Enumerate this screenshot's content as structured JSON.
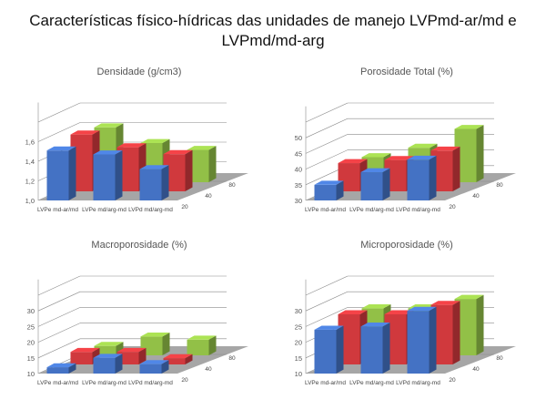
{
  "figure": {
    "title_line1": "Características físico-hídricas das unidades de manejo LVPmd-ar/md  e",
    "title_line2": "LVPmd/md-arg"
  },
  "colors": {
    "blue": "#4472C4",
    "red": "#D0393D",
    "green": "#92C047",
    "floor": "#A6A6A6"
  },
  "chart_data": [
    {
      "type": "bar",
      "title": "Densidade (g/cm3)",
      "categories": [
        "LVPe md-ar/md",
        "LVPe md/arg-md",
        "LVPd md/arg-md"
      ],
      "depth_labels": [
        "20",
        "40",
        "80"
      ],
      "yticks": [
        "1,0",
        "1,2",
        "1,4",
        "1,6"
      ],
      "ylim": [
        1.0,
        1.8
      ],
      "series": [
        {
          "name": "20",
          "color": "#4472C4",
          "values": [
            1.51,
            1.47,
            1.32
          ]
        },
        {
          "name": "40",
          "color": "#D0393D",
          "values": [
            1.58,
            1.45,
            1.38
          ]
        },
        {
          "name": "80",
          "color": "#92C047",
          "values": [
            1.56,
            1.4,
            1.33
          ]
        }
      ]
    },
    {
      "type": "bar",
      "title": "Porosidade Total (%)",
      "categories": [
        "LVPe md-ar/md",
        "LVPe md/arg-md",
        "LVPd md/arg-md"
      ],
      "depth_labels": [
        "20",
        "40",
        "80"
      ],
      "yticks": [
        "30",
        "35",
        "40",
        "45",
        "50"
      ],
      "ylim": [
        30,
        55
      ],
      "series": [
        {
          "name": "20",
          "color": "#4472C4",
          "values": [
            35,
            39,
            43
          ]
        },
        {
          "name": "40",
          "color": "#D0393D",
          "values": [
            39,
            40,
            43
          ]
        },
        {
          "name": "80",
          "color": "#92C047",
          "values": [
            38,
            41,
            47
          ]
        }
      ]
    },
    {
      "type": "bar",
      "title": "Macroporosidade (%)",
      "categories": [
        "LVPe md-ar/md",
        "LVPe md/arg-md",
        "LVPd md/arg-md"
      ],
      "depth_labels": [
        "20",
        "40",
        "80"
      ],
      "yticks": [
        "10",
        "15",
        "20",
        "25",
        "30"
      ],
      "ylim": [
        10,
        35
      ],
      "series": [
        {
          "name": "20",
          "color": "#4472C4",
          "values": [
            12,
            15,
            13
          ]
        },
        {
          "name": "40",
          "color": "#D0393D",
          "values": [
            14,
            14,
            12
          ]
        },
        {
          "name": "80",
          "color": "#92C047",
          "values": [
            13,
            16,
            15
          ]
        }
      ]
    },
    {
      "type": "bar",
      "title": "Microporosidade (%)",
      "categories": [
        "LVPe md-ar/md",
        "LVPe md/arg-md",
        "LVPd md/arg-md"
      ],
      "depth_labels": [
        "20",
        "40",
        "80"
      ],
      "yticks": [
        "10",
        "15",
        "20",
        "25",
        "30"
      ],
      "ylim": [
        10,
        35
      ],
      "series": [
        {
          "name": "20",
          "color": "#4472C4",
          "values": [
            24,
            25,
            30
          ]
        },
        {
          "name": "40",
          "color": "#D0393D",
          "values": [
            26,
            26,
            29
          ]
        },
        {
          "name": "80",
          "color": "#92C047",
          "values": [
            25,
            25,
            28
          ]
        }
      ]
    }
  ]
}
